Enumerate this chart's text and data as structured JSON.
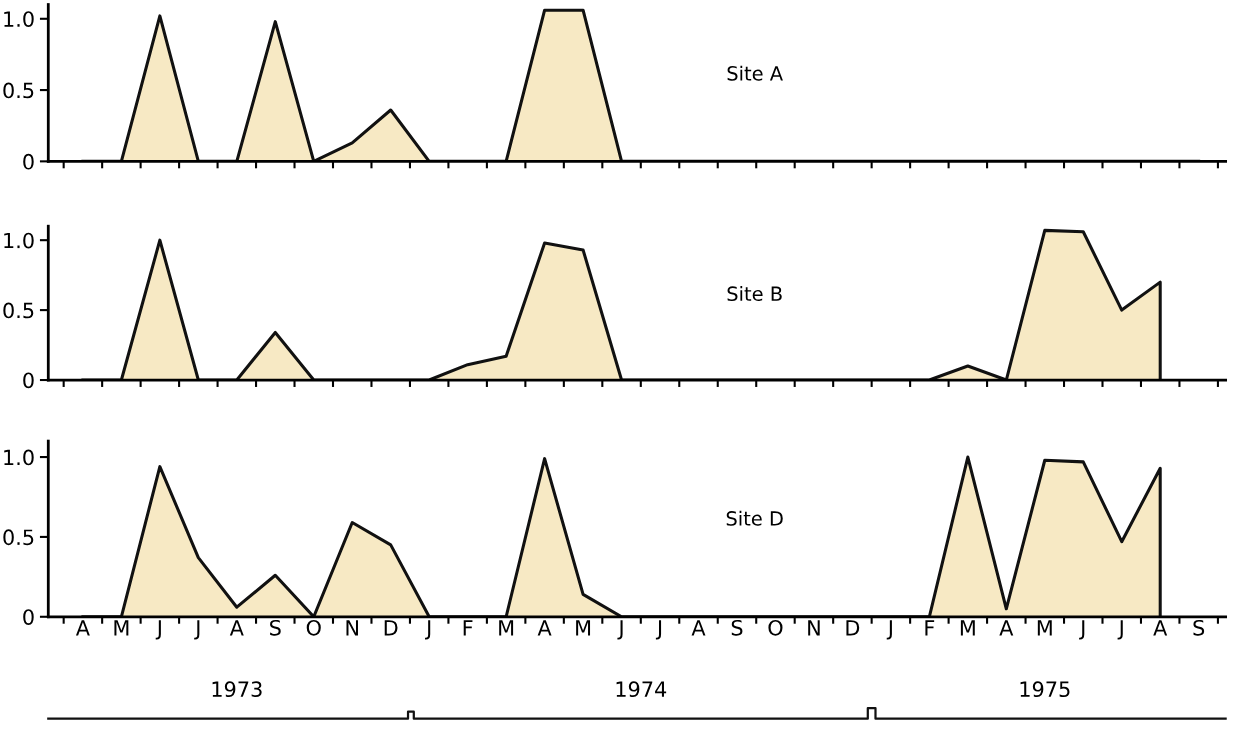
{
  "chart_data": [
    {
      "type": "area",
      "title": "Site A",
      "categories": [
        null,
        null,
        null,
        null,
        null,
        null,
        null,
        null,
        null,
        null,
        null,
        null,
        null,
        null,
        null,
        null,
        null,
        null,
        null,
        null,
        null,
        null,
        null,
        null,
        null,
        null,
        null,
        null,
        null,
        null
      ],
      "tick_labels": "y",
      "color": "#f7e9c4",
      "values": [
        0,
        0,
        1.02,
        0,
        0,
        0.98,
        0,
        0.13,
        0.36,
        0,
        0,
        0,
        1.06,
        1.06,
        0,
        0,
        0,
        0,
        0,
        0,
        0,
        0,
        0,
        0,
        0,
        0,
        0,
        0,
        0,
        0
      ],
      "ylim": [
        0,
        1.1
      ],
      "yticks": [
        {
          "value": 0,
          "label": "0"
        },
        {
          "value": 0.5,
          "label": "0.5"
        },
        {
          "value": 1,
          "label": "1.0"
        }
      ]
    },
    {
      "type": "area",
      "title": "Site B",
      "categories": [
        null,
        null,
        null,
        null,
        null,
        null,
        null,
        null,
        null,
        null,
        null,
        null,
        null,
        null,
        null,
        null,
        null,
        null,
        null,
        null,
        null,
        null,
        null,
        null,
        null,
        null,
        null,
        null,
        null,
        null
      ],
      "tick_labels": "y",
      "color": "#f7e9c4",
      "values": [
        0,
        0,
        1.0,
        0,
        0,
        0.34,
        0,
        0,
        0,
        0,
        0.11,
        0.17,
        0.98,
        0.93,
        0,
        0,
        0,
        0,
        0,
        0,
        0,
        0,
        0,
        0.1,
        0,
        1.07,
        1.06,
        0.5,
        0.7,
        null
      ],
      "ylim": [
        0,
        1.1
      ],
      "yticks": [
        {
          "value": 0,
          "label": "0"
        },
        {
          "value": 0.5,
          "label": "0.5"
        },
        {
          "value": 1,
          "label": "1.0"
        }
      ]
    },
    {
      "type": "area",
      "title": "Site D",
      "categories": [
        "A",
        "M",
        "J",
        "J",
        "A",
        "S",
        "O",
        "N",
        "D",
        "J",
        "F",
        "M",
        "A",
        "M",
        "J",
        "J",
        "A",
        "S",
        "O",
        "N",
        "D",
        "J",
        "F",
        "M",
        "A",
        "M",
        "J",
        "J",
        "A",
        "S"
      ],
      "color": "#f7e9c4",
      "values": [
        0,
        0,
        0.94,
        0.37,
        0.06,
        0.26,
        0,
        0.59,
        0.45,
        0,
        0,
        0,
        0.99,
        0.14,
        0,
        0,
        0,
        0,
        0,
        0,
        0,
        0,
        0,
        1.0,
        0.05,
        0.98,
        0.97,
        0.47,
        0.93,
        null
      ],
      "ylim": [
        0,
        1.1
      ],
      "yticks": [
        {
          "value": 0,
          "label": "0"
        },
        {
          "value": 0.5,
          "label": "0.5"
        },
        {
          "value": 1,
          "label": "1.0"
        }
      ],
      "annotations": [
        "1973",
        "1974",
        "1975"
      ]
    }
  ]
}
